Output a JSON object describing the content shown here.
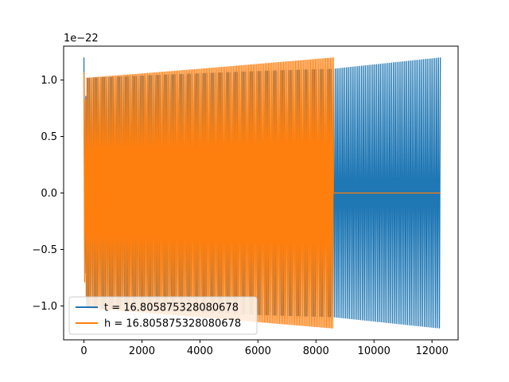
{
  "chart_data": {
    "type": "line",
    "title": "",
    "xlabel": "",
    "ylabel": "",
    "xlim": [
      -700,
      12900
    ],
    "ylim": [
      -1.3e-22,
      1.3e-22
    ],
    "y_offset_label": "1e−22",
    "x_ticks": [
      0,
      2000,
      4000,
      6000,
      8000,
      10000,
      12000
    ],
    "x_tick_labels": [
      "0",
      "2000",
      "4000",
      "6000",
      "8000",
      "10000",
      "12000"
    ],
    "y_ticks": [
      -1e-22,
      -5e-23,
      0.0,
      5e-23,
      1e-22
    ],
    "y_tick_labels": [
      "−1.0",
      "−0.5",
      "0.0",
      "0.5",
      "1.0"
    ],
    "grid": false,
    "legend_position": "lower-left",
    "series": [
      {
        "name": "t = 16.805875328080678",
        "color": "#1f77b4",
        "x_range": [
          0,
          12288
        ],
        "envelope_x": [
          0,
          30,
          100,
          3000,
          6000,
          8600,
          12288
        ],
        "envelope_y": [
          1.2e-22,
          7e-23,
          1.02e-22,
          1.05e-22,
          1.08e-22,
          1.1e-22,
          1.2e-22
        ],
        "cycles": 190
      },
      {
        "name": "h = 16.805875328080678",
        "color": "#ff7f0e",
        "x_range": [
          0,
          8600
        ],
        "envelope_x": [
          0,
          30,
          100,
          4000,
          8600
        ],
        "envelope_y": [
          1.07e-22,
          7.5e-23,
          1.02e-22,
          1.1e-22,
          1.2e-22
        ],
        "cycles": 165,
        "flat_after": 8600,
        "flat_until": 12288,
        "flat_value": 0.0
      }
    ]
  }
}
